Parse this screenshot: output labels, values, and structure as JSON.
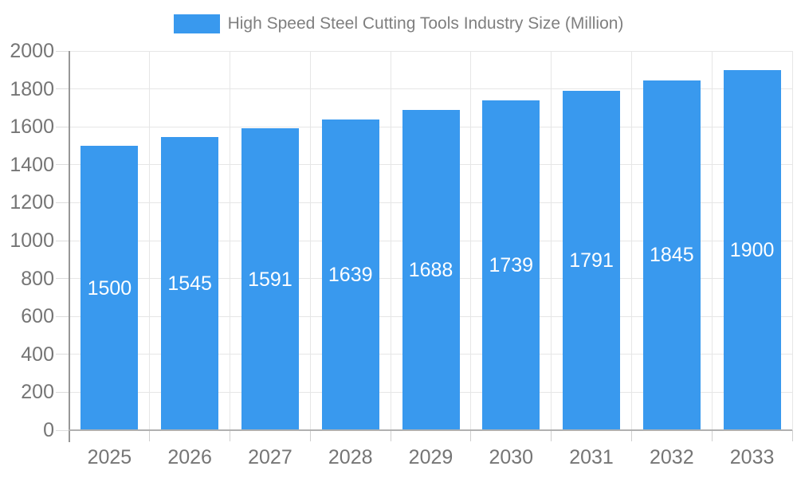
{
  "chart_data": {
    "type": "bar",
    "title": "High Speed Steel Cutting Tools Industry Size (Million)",
    "legend": {
      "position": "top",
      "label": "High Speed Steel Cutting Tools Industry Size (Million)"
    },
    "categories": [
      "2025",
      "2026",
      "2027",
      "2028",
      "2029",
      "2030",
      "2031",
      "2032",
      "2033"
    ],
    "values": [
      1500,
      1545,
      1591,
      1639,
      1688,
      1739,
      1791,
      1845,
      1900
    ],
    "xlabel": "",
    "ylabel": "",
    "ylim": [
      0,
      2000
    ],
    "ytick_step": 200,
    "ytick_labels": [
      "0",
      "200",
      "400",
      "600",
      "800",
      "1000",
      "1200",
      "1400",
      "1600",
      "1800",
      "2000"
    ],
    "grid": true,
    "bar_labels_visible": true,
    "palette": {
      "bar": "#3999EE",
      "bar_label_text": "#FFFFFF",
      "axis_text": "#757575",
      "legend_text": "#7F7F7F",
      "gridline": "#E6E6E6",
      "y_axis_line": "#979797",
      "x_axis_line": "#B0B0B0",
      "tick": "#CFCFCF",
      "background": "#FFFFFF"
    }
  }
}
